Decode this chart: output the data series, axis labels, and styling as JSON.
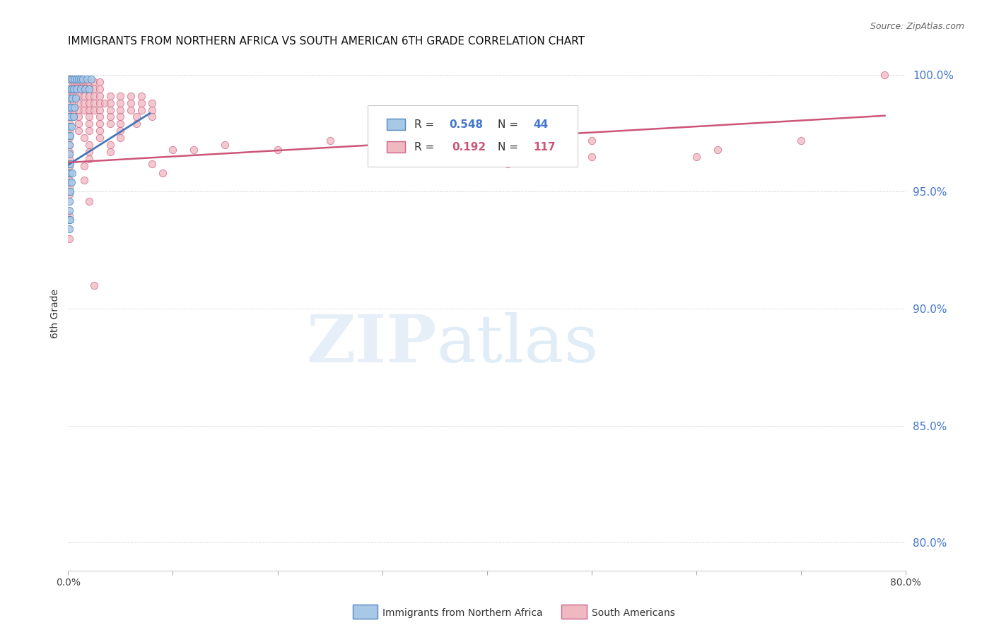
{
  "title": "IMMIGRANTS FROM NORTHERN AFRICA VS SOUTH AMERICAN 6TH GRADE CORRELATION CHART",
  "source": "Source: ZipAtlas.com",
  "ylabel": "6th Grade",
  "xlim": [
    0.0,
    0.8
  ],
  "ylim": [
    0.788,
    1.008
  ],
  "ytick_positions": [
    0.8,
    0.85,
    0.9,
    0.95,
    1.0
  ],
  "ytick_labels": [
    "80.0%",
    "85.0%",
    "90.0%",
    "95.0%",
    "100.0%"
  ],
  "xtick_positions": [
    0.0,
    0.1,
    0.2,
    0.3,
    0.4,
    0.5,
    0.6,
    0.7,
    0.8
  ],
  "xtick_labels": [
    "0.0%",
    "",
    "",
    "",
    "",
    "",
    "",
    "",
    "80.0%"
  ],
  "color_blue_fill": "#a8c8e8",
  "color_blue_edge": "#5588bb",
  "color_pink_fill": "#f0b8c0",
  "color_pink_edge": "#cc6688",
  "color_line_blue": "#4477bb",
  "color_line_pink": "#cc5577",
  "color_ytick": "#4477cc",
  "watermark_zip": "ZIP",
  "watermark_atlas": "atlas",
  "blue_line_x": [
    0.0,
    0.078
  ],
  "blue_line_y": [
    0.9615,
    0.9835
  ],
  "pink_line_x": [
    0.0,
    0.78
  ],
  "pink_line_y": [
    0.9625,
    0.9825
  ],
  "blue_points": [
    [
      0.001,
      0.998
    ],
    [
      0.004,
      0.998
    ],
    [
      0.006,
      0.998
    ],
    [
      0.008,
      0.998
    ],
    [
      0.01,
      0.998
    ],
    [
      0.012,
      0.998
    ],
    [
      0.014,
      0.998
    ],
    [
      0.018,
      0.998
    ],
    [
      0.022,
      0.998
    ],
    [
      0.001,
      0.994
    ],
    [
      0.003,
      0.994
    ],
    [
      0.005,
      0.994
    ],
    [
      0.008,
      0.994
    ],
    [
      0.012,
      0.994
    ],
    [
      0.016,
      0.994
    ],
    [
      0.02,
      0.994
    ],
    [
      0.001,
      0.99
    ],
    [
      0.004,
      0.99
    ],
    [
      0.007,
      0.99
    ],
    [
      0.001,
      0.986
    ],
    [
      0.003,
      0.986
    ],
    [
      0.006,
      0.986
    ],
    [
      0.001,
      0.982
    ],
    [
      0.002,
      0.982
    ],
    [
      0.005,
      0.982
    ],
    [
      0.001,
      0.978
    ],
    [
      0.003,
      0.978
    ],
    [
      0.001,
      0.974
    ],
    [
      0.002,
      0.974
    ],
    [
      0.001,
      0.97
    ],
    [
      0.001,
      0.966
    ],
    [
      0.001,
      0.962
    ],
    [
      0.002,
      0.962
    ],
    [
      0.001,
      0.958
    ],
    [
      0.002,
      0.958
    ],
    [
      0.004,
      0.958
    ],
    [
      0.001,
      0.954
    ],
    [
      0.003,
      0.954
    ],
    [
      0.001,
      0.95
    ],
    [
      0.002,
      0.95
    ],
    [
      0.001,
      0.946
    ],
    [
      0.001,
      0.942
    ],
    [
      0.001,
      0.938
    ],
    [
      0.002,
      0.938
    ],
    [
      0.001,
      0.934
    ]
  ],
  "pink_points": [
    [
      0.001,
      0.998
    ],
    [
      0.002,
      0.998
    ],
    [
      0.003,
      0.998
    ],
    [
      0.004,
      0.997
    ],
    [
      0.006,
      0.997
    ],
    [
      0.008,
      0.997
    ],
    [
      0.01,
      0.997
    ],
    [
      0.012,
      0.997
    ],
    [
      0.014,
      0.997
    ],
    [
      0.016,
      0.997
    ],
    [
      0.018,
      0.997
    ],
    [
      0.02,
      0.997
    ],
    [
      0.025,
      0.997
    ],
    [
      0.03,
      0.997
    ],
    [
      0.001,
      0.994
    ],
    [
      0.003,
      0.994
    ],
    [
      0.005,
      0.994
    ],
    [
      0.008,
      0.994
    ],
    [
      0.012,
      0.994
    ],
    [
      0.016,
      0.994
    ],
    [
      0.02,
      0.994
    ],
    [
      0.025,
      0.994
    ],
    [
      0.03,
      0.994
    ],
    [
      0.001,
      0.991
    ],
    [
      0.004,
      0.991
    ],
    [
      0.007,
      0.991
    ],
    [
      0.01,
      0.991
    ],
    [
      0.015,
      0.991
    ],
    [
      0.02,
      0.991
    ],
    [
      0.025,
      0.991
    ],
    [
      0.03,
      0.991
    ],
    [
      0.04,
      0.991
    ],
    [
      0.05,
      0.991
    ],
    [
      0.06,
      0.991
    ],
    [
      0.07,
      0.991
    ],
    [
      0.001,
      0.988
    ],
    [
      0.005,
      0.988
    ],
    [
      0.01,
      0.988
    ],
    [
      0.015,
      0.988
    ],
    [
      0.02,
      0.988
    ],
    [
      0.025,
      0.988
    ],
    [
      0.03,
      0.988
    ],
    [
      0.035,
      0.988
    ],
    [
      0.04,
      0.988
    ],
    [
      0.05,
      0.988
    ],
    [
      0.06,
      0.988
    ],
    [
      0.07,
      0.988
    ],
    [
      0.08,
      0.988
    ],
    [
      0.001,
      0.985
    ],
    [
      0.005,
      0.985
    ],
    [
      0.01,
      0.985
    ],
    [
      0.015,
      0.985
    ],
    [
      0.02,
      0.985
    ],
    [
      0.025,
      0.985
    ],
    [
      0.03,
      0.985
    ],
    [
      0.04,
      0.985
    ],
    [
      0.05,
      0.985
    ],
    [
      0.06,
      0.985
    ],
    [
      0.07,
      0.985
    ],
    [
      0.08,
      0.985
    ],
    [
      0.001,
      0.982
    ],
    [
      0.005,
      0.982
    ],
    [
      0.01,
      0.982
    ],
    [
      0.02,
      0.982
    ],
    [
      0.03,
      0.982
    ],
    [
      0.04,
      0.982
    ],
    [
      0.05,
      0.982
    ],
    [
      0.065,
      0.982
    ],
    [
      0.08,
      0.982
    ],
    [
      0.001,
      0.979
    ],
    [
      0.01,
      0.979
    ],
    [
      0.02,
      0.979
    ],
    [
      0.03,
      0.979
    ],
    [
      0.04,
      0.979
    ],
    [
      0.05,
      0.979
    ],
    [
      0.065,
      0.979
    ],
    [
      0.001,
      0.976
    ],
    [
      0.01,
      0.976
    ],
    [
      0.02,
      0.976
    ],
    [
      0.03,
      0.976
    ],
    [
      0.05,
      0.976
    ],
    [
      0.001,
      0.973
    ],
    [
      0.015,
      0.973
    ],
    [
      0.03,
      0.973
    ],
    [
      0.05,
      0.973
    ],
    [
      0.001,
      0.97
    ],
    [
      0.02,
      0.97
    ],
    [
      0.04,
      0.97
    ],
    [
      0.001,
      0.967
    ],
    [
      0.02,
      0.967
    ],
    [
      0.04,
      0.967
    ],
    [
      0.001,
      0.964
    ],
    [
      0.02,
      0.964
    ],
    [
      0.001,
      0.961
    ],
    [
      0.015,
      0.961
    ],
    [
      0.001,
      0.958
    ],
    [
      0.001,
      0.955
    ],
    [
      0.015,
      0.955
    ],
    [
      0.001,
      0.952
    ],
    [
      0.001,
      0.949
    ],
    [
      0.02,
      0.946
    ],
    [
      0.001,
      0.94
    ],
    [
      0.001,
      0.93
    ],
    [
      0.025,
      0.91
    ],
    [
      0.5,
      0.972
    ],
    [
      0.62,
      0.968
    ],
    [
      0.7,
      0.972
    ],
    [
      0.5,
      0.965
    ],
    [
      0.42,
      0.962
    ],
    [
      0.35,
      0.965
    ],
    [
      0.3,
      0.97
    ],
    [
      0.25,
      0.972
    ],
    [
      0.2,
      0.968
    ],
    [
      0.15,
      0.97
    ],
    [
      0.12,
      0.968
    ],
    [
      0.1,
      0.968
    ],
    [
      0.08,
      0.962
    ],
    [
      0.09,
      0.958
    ],
    [
      0.78,
      1.0
    ],
    [
      0.6,
      0.965
    ]
  ]
}
